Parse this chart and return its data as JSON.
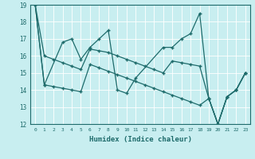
{
  "xlabel": "Humidex (Indice chaleur)",
  "xlim": [
    -0.5,
    23.5
  ],
  "ylim": [
    12,
    19
  ],
  "yticks": [
    12,
    13,
    14,
    15,
    16,
    17,
    18,
    19
  ],
  "xticks": [
    0,
    1,
    2,
    3,
    4,
    5,
    6,
    7,
    8,
    9,
    10,
    11,
    12,
    13,
    14,
    15,
    16,
    17,
    18,
    19,
    20,
    21,
    22,
    23
  ],
  "bg_color": "#c8eef0",
  "grid_color": "#ffffff",
  "line_color": "#1e6b6b",
  "line1_x": [
    0,
    1,
    3,
    4,
    5,
    6,
    7,
    8,
    9,
    10,
    11,
    14,
    15,
    16,
    17,
    18,
    19,
    20,
    21,
    22,
    23
  ],
  "line1_y": [
    19,
    14.3,
    16.8,
    17.0,
    15.8,
    16.5,
    17.0,
    17.5,
    14.0,
    13.8,
    14.7,
    16.5,
    16.5,
    17.0,
    17.3,
    18.5,
    13.5,
    12.0,
    13.6,
    14.0,
    15.0
  ],
  "line2_x": [
    0,
    1,
    2,
    3,
    4,
    5,
    6,
    7,
    8,
    9,
    10,
    11,
    12,
    13,
    14,
    15,
    16,
    17,
    18,
    19,
    20,
    21,
    22,
    23
  ],
  "line2_y": [
    19,
    16.0,
    15.8,
    15.6,
    15.4,
    15.2,
    16.4,
    16.3,
    16.2,
    16.0,
    15.8,
    15.6,
    15.4,
    15.2,
    15.0,
    15.7,
    15.6,
    15.5,
    15.4,
    13.5,
    12.0,
    13.6,
    14.0,
    15.0
  ],
  "line3_x": [
    0,
    1,
    2,
    3,
    4,
    5,
    6,
    7,
    8,
    9,
    10,
    11,
    12,
    13,
    14,
    15,
    16,
    17,
    18,
    19,
    20,
    21,
    22,
    23
  ],
  "line3_y": [
    19,
    14.3,
    14.2,
    14.1,
    14.0,
    13.9,
    15.5,
    15.3,
    15.1,
    14.9,
    14.7,
    14.5,
    14.3,
    14.1,
    13.9,
    13.7,
    13.5,
    13.3,
    13.1,
    13.5,
    12.0,
    13.6,
    14.0,
    15.0
  ]
}
